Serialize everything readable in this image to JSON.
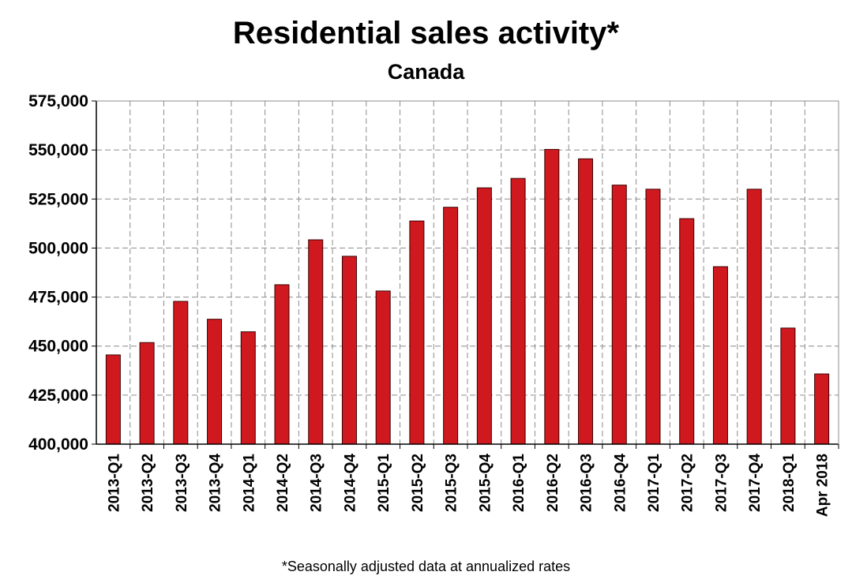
{
  "chart_data": {
    "type": "bar",
    "title": "Residential sales activity*",
    "subtitle": "Canada",
    "footnote": "*Seasonally adjusted data at annualized rates",
    "xlabel": "",
    "ylabel": "",
    "ylim": [
      400000,
      575000
    ],
    "yticks": [
      400000,
      425000,
      450000,
      475000,
      500000,
      525000,
      550000,
      575000
    ],
    "ytick_labels": [
      "400,000",
      "425,000",
      "450,000",
      "475,000",
      "500,000",
      "525,000",
      "550,000",
      "575,000"
    ],
    "grid": true,
    "categories": [
      "2013-Q1",
      "2013-Q2",
      "2013-Q3",
      "2013-Q4",
      "2014-Q1",
      "2014-Q2",
      "2014-Q3",
      "2014-Q4",
      "2015-Q1",
      "2015-Q2",
      "2015-Q3",
      "2015-Q4",
      "2016-Q1",
      "2016-Q2",
      "2016-Q3",
      "2016-Q4",
      "2017-Q1",
      "2017-Q2",
      "2017-Q3",
      "2017-Q4",
      "2018-Q1",
      "Apr 2018"
    ],
    "values": [
      445500,
      451800,
      472800,
      463700,
      457300,
      481300,
      504200,
      495800,
      478100,
      513800,
      520800,
      530700,
      535500,
      550300,
      545500,
      532100,
      530000,
      515000,
      490500,
      530000,
      459200,
      435800
    ],
    "bar_color": "#d0191f"
  }
}
